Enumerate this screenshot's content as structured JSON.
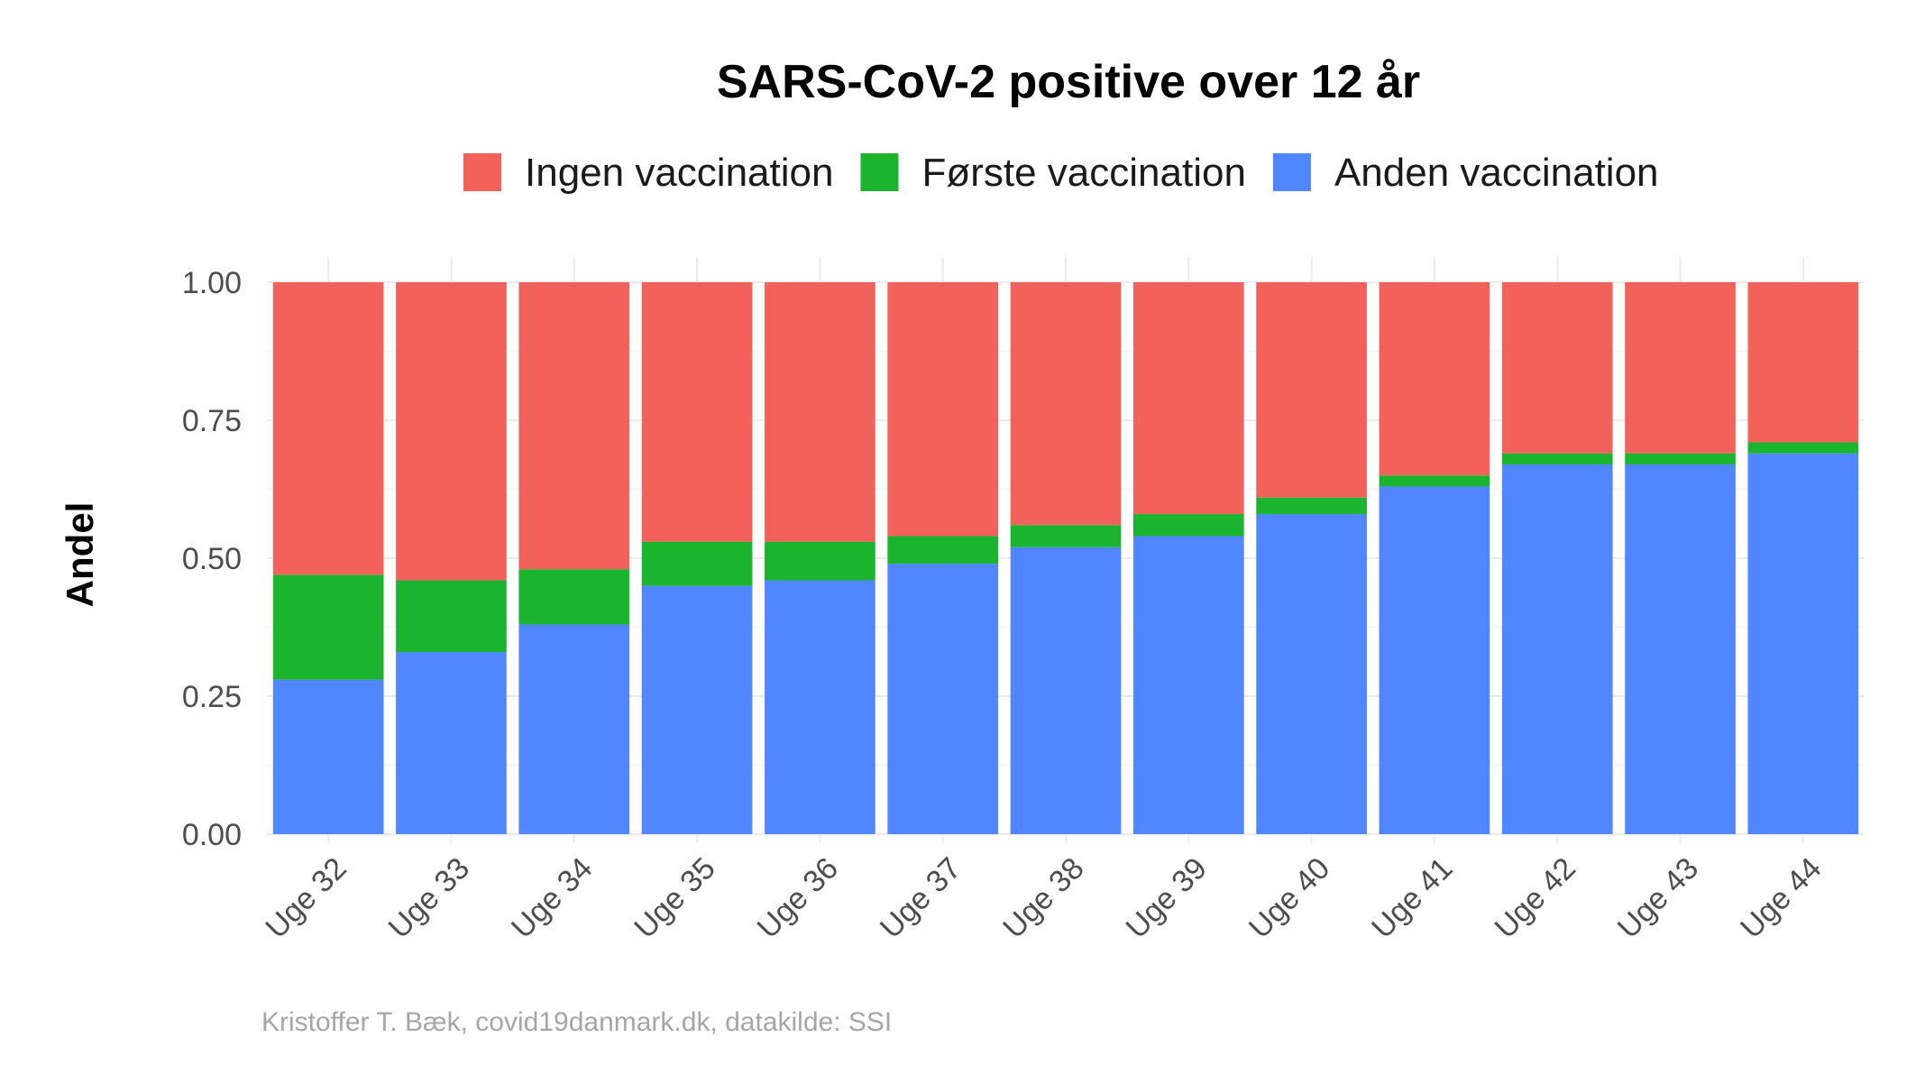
{
  "chart_data": {
    "type": "bar",
    "stacked": true,
    "title": "SARS-CoV-2 positive over 12 år",
    "xlabel": "",
    "ylabel": "Andel",
    "ylim": [
      0,
      1
    ],
    "yticks": [
      "0.00",
      "0.25",
      "0.50",
      "0.75",
      "1.00"
    ],
    "ytick_values": [
      0,
      0.25,
      0.5,
      0.75,
      1.0
    ],
    "categories": [
      "Uge 32",
      "Uge 33",
      "Uge 34",
      "Uge 35",
      "Uge 36",
      "Uge 37",
      "Uge 38",
      "Uge 39",
      "Uge 40",
      "Uge 41",
      "Uge 42",
      "Uge 43",
      "Uge 44"
    ],
    "series": [
      {
        "name": "Anden vaccination",
        "color": "#5086FF",
        "values": [
          0.28,
          0.33,
          0.38,
          0.45,
          0.46,
          0.49,
          0.52,
          0.54,
          0.58,
          0.63,
          0.67,
          0.67,
          0.69
        ]
      },
      {
        "name": "Første vaccination",
        "color": "#1AB42E",
        "values": [
          0.19,
          0.13,
          0.1,
          0.08,
          0.07,
          0.05,
          0.04,
          0.04,
          0.03,
          0.02,
          0.02,
          0.02,
          0.02
        ]
      },
      {
        "name": "Ingen vaccination",
        "color": "#F2625B",
        "values": [
          0.53,
          0.54,
          0.52,
          0.47,
          0.47,
          0.46,
          0.44,
          0.42,
          0.39,
          0.35,
          0.31,
          0.31,
          0.29
        ]
      }
    ],
    "legend": {
      "position": "top",
      "order": [
        "Ingen vaccination",
        "Første vaccination",
        "Anden vaccination"
      ]
    },
    "grid": true
  },
  "caption": "Kristoffer T. Bæk, covid19danmark.dk, datakilde: SSI"
}
